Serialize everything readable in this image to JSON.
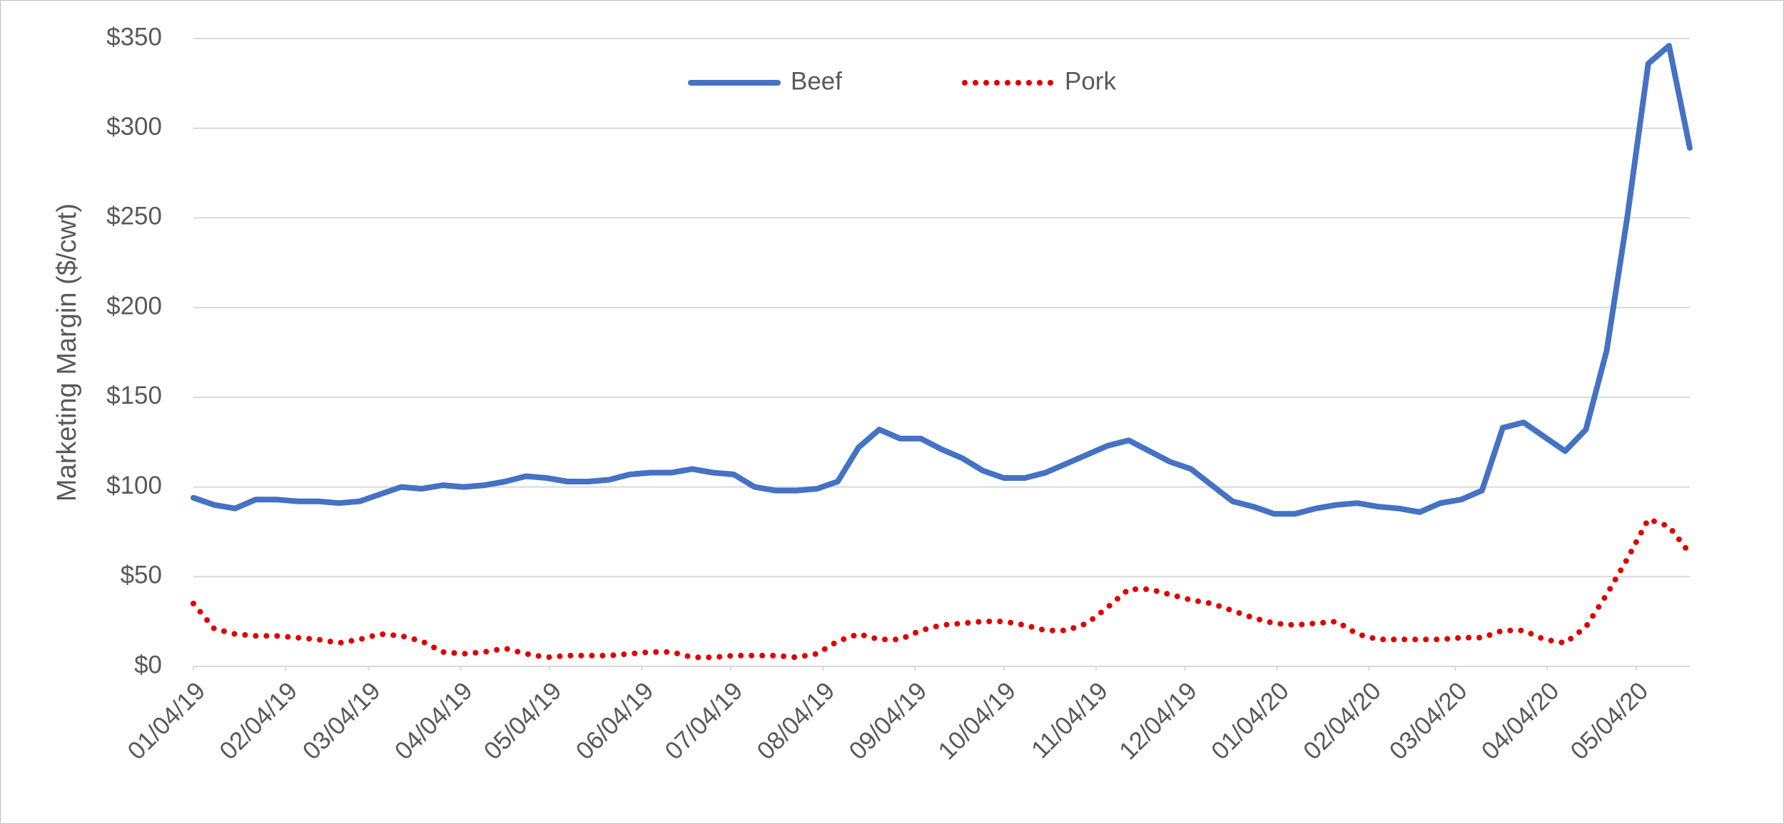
{
  "chart_data": {
    "type": "line",
    "y_label": "Marketing Margin ($/cwt)",
    "x": [
      "2019-01-04",
      "2019-01-11",
      "2019-01-18",
      "2019-01-25",
      "2019-02-01",
      "2019-02-08",
      "2019-02-15",
      "2019-02-22",
      "2019-03-01",
      "2019-03-08",
      "2019-03-15",
      "2019-03-22",
      "2019-03-29",
      "2019-04-05",
      "2019-04-12",
      "2019-04-19",
      "2019-04-26",
      "2019-05-03",
      "2019-05-10",
      "2019-05-17",
      "2019-05-24",
      "2019-05-31",
      "2019-06-07",
      "2019-06-14",
      "2019-06-21",
      "2019-06-28",
      "2019-07-05",
      "2019-07-12",
      "2019-07-19",
      "2019-07-26",
      "2019-08-02",
      "2019-08-09",
      "2019-08-16",
      "2019-08-23",
      "2019-08-30",
      "2019-09-06",
      "2019-09-13",
      "2019-09-20",
      "2019-09-27",
      "2019-10-04",
      "2019-10-11",
      "2019-10-18",
      "2019-10-25",
      "2019-11-01",
      "2019-11-08",
      "2019-11-15",
      "2019-11-22",
      "2019-11-29",
      "2019-12-06",
      "2019-12-13",
      "2019-12-20",
      "2019-12-27",
      "2020-01-03",
      "2020-01-10",
      "2020-01-17",
      "2020-01-24",
      "2020-01-31",
      "2020-02-07",
      "2020-02-14",
      "2020-02-21",
      "2020-02-28",
      "2020-03-06",
      "2020-03-13",
      "2020-03-20",
      "2020-03-27",
      "2020-04-03",
      "2020-04-10",
      "2020-04-17",
      "2020-04-24",
      "2020-05-01",
      "2020-05-08",
      "2020-05-15",
      "2020-05-22"
    ],
    "series": [
      {
        "name": "Beef",
        "color": "#4472c4",
        "style": "solid",
        "values": [
          94,
          90,
          88,
          93,
          93,
          92,
          92,
          91,
          92,
          96,
          100,
          99,
          101,
          100,
          101,
          103,
          106,
          105,
          103,
          103,
          104,
          107,
          108,
          108,
          110,
          108,
          107,
          100,
          98,
          98,
          99,
          103,
          122,
          132,
          127,
          127,
          121,
          116,
          109,
          105,
          105,
          108,
          113,
          118,
          123,
          126,
          120,
          114,
          110,
          101,
          92,
          89,
          85,
          85,
          88,
          90,
          91,
          89,
          88,
          86,
          91,
          93,
          98,
          133,
          136,
          128,
          120,
          132,
          176,
          251,
          336,
          346,
          289
        ]
      },
      {
        "name": "Pork",
        "color": "#e00000",
        "style": "dotted",
        "values": [
          35,
          21,
          18,
          17,
          17,
          16,
          15,
          13,
          15,
          18,
          17,
          14,
          8,
          7,
          8,
          10,
          7,
          5,
          6,
          6,
          6,
          7,
          8,
          8,
          5,
          5,
          6,
          6,
          6,
          5,
          7,
          14,
          18,
          15,
          15,
          20,
          23,
          24,
          25,
          25,
          23,
          20,
          20,
          24,
          33,
          43,
          43,
          40,
          37,
          35,
          31,
          27,
          24,
          23,
          24,
          25,
          18,
          15,
          15,
          15,
          15,
          16,
          16,
          20,
          20,
          15,
          13,
          22,
          40,
          60,
          82,
          78,
          63
        ]
      }
    ],
    "xlim": [
      "2019-01-04",
      "2020-05-22"
    ],
    "xticks": [
      {
        "value": "2019-01-04",
        "label": "01/04/19"
      },
      {
        "value": "2019-02-04",
        "label": "02/04/19"
      },
      {
        "value": "2019-03-04",
        "label": "03/04/19"
      },
      {
        "value": "2019-04-04",
        "label": "04/04/19"
      },
      {
        "value": "2019-05-04",
        "label": "05/04/19"
      },
      {
        "value": "2019-06-04",
        "label": "06/04/19"
      },
      {
        "value": "2019-07-04",
        "label": "07/04/19"
      },
      {
        "value": "2019-08-04",
        "label": "08/04/19"
      },
      {
        "value": "2019-09-04",
        "label": "09/04/19"
      },
      {
        "value": "2019-10-04",
        "label": "10/04/19"
      },
      {
        "value": "2019-11-04",
        "label": "11/04/19"
      },
      {
        "value": "2019-12-04",
        "label": "12/04/19"
      },
      {
        "value": "2020-01-04",
        "label": "01/04/20"
      },
      {
        "value": "2020-02-04",
        "label": "02/04/20"
      },
      {
        "value": "2020-03-04",
        "label": "03/04/20"
      },
      {
        "value": "2020-04-04",
        "label": "04/04/20"
      },
      {
        "value": "2020-05-04",
        "label": "05/04/20"
      }
    ],
    "ylim": [
      0,
      350
    ],
    "yticks": [
      {
        "value": 0,
        "label": "$0"
      },
      {
        "value": 50,
        "label": "$50"
      },
      {
        "value": 100,
        "label": "$100"
      },
      {
        "value": 150,
        "label": "$150"
      },
      {
        "value": 200,
        "label": "$200"
      },
      {
        "value": 250,
        "label": "$250"
      },
      {
        "value": 300,
        "label": "$300"
      },
      {
        "value": 350,
        "label": "$350"
      }
    ],
    "grid": true,
    "legend": "top"
  }
}
